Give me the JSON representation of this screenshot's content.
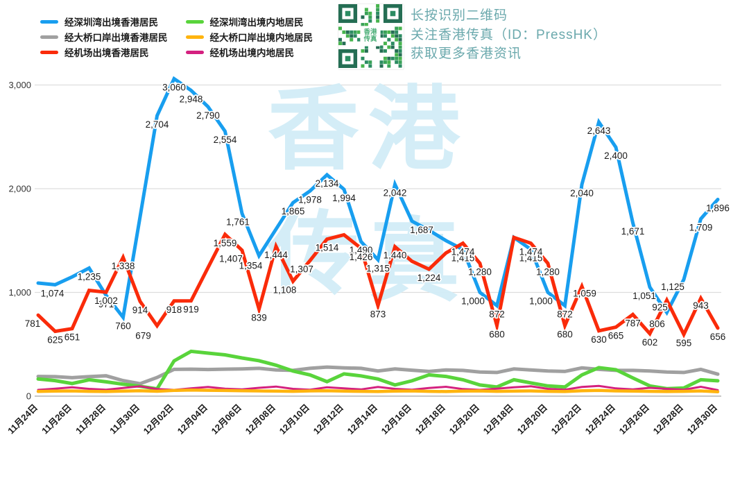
{
  "promo": {
    "line1": "长按识别二维码",
    "line2": "关注香港传真（ID：PressHK）",
    "line3": "获取更多香港资讯"
  },
  "qr_center_text": "香港传真",
  "watermark_chars": [
    "香",
    "港",
    "传",
    "真"
  ],
  "colors": {
    "blue": "#189EEF",
    "gray": "#A0A0A0",
    "red": "#FA2B0A",
    "green": "#59D43B",
    "orange": "#FFB40E",
    "magenta": "#D4217F",
    "promo_text": "#6BA9AD",
    "watermark": "#D2EDF7",
    "gridline": "#DDDDDD",
    "baseline": "#C6C6C6",
    "label_text": "#1a1a1a"
  },
  "legend": [
    {
      "label": "经深圳湾出境香港居民",
      "color_key": "blue"
    },
    {
      "label": "经大桥口岸出境香港居民",
      "color_key": "gray"
    },
    {
      "label": "经机场出境香港居民",
      "color_key": "red"
    },
    {
      "label": "经深圳湾出境内地居民",
      "color_key": "green"
    },
    {
      "label": "经大桥口岸出境内地居民",
      "color_key": "orange"
    },
    {
      "label": "经机场出境内地居民",
      "color_key": "magenta"
    }
  ],
  "chart_data": {
    "type": "line",
    "grid": true,
    "legend_position": "top-left",
    "ylim": [
      0,
      3200
    ],
    "y_tick_values": [
      0,
      1000,
      2000,
      3000
    ],
    "y_tick_labels": [
      "0",
      "1,000",
      "2,000",
      "3,000"
    ],
    "x_tick_labels": [
      "11月24日",
      "11月26日",
      "11月28日",
      "11月30日",
      "12月02日",
      "12月04日",
      "12月06日",
      "12月08日",
      "12月10日",
      "12月12日",
      "12月14日",
      "12月16日",
      "12月18日",
      "12月20日",
      "12月18日",
      "12月20日",
      "12月22日",
      "12月24日",
      "12月26日",
      "12月28日",
      "12月30日"
    ],
    "series": [
      {
        "name": "经深圳湾出境香港居民",
        "color_key": "blue",
        "width": 5,
        "values": [
          1090,
          1074,
          1150,
          1235,
          971,
          760,
          1730,
          2704,
          3060,
          2948,
          2790,
          2554,
          1761,
          1354,
          1610,
          1865,
          1978,
          2134,
          1994,
          1490,
          1315,
          2042,
          1687,
          1600,
          1500,
          1415,
          1000,
          872,
          1530,
          1415,
          1000,
          872,
          2040,
          2643,
          2400,
          1671,
          1051,
          806,
          1125,
          1709,
          1896
        ],
        "labels": [
          null,
          "1,074",
          null,
          "1,235",
          "971",
          "760",
          null,
          "2,704",
          "3,060",
          "2,948",
          "2,790",
          "2,554",
          "1,761",
          "1,354",
          null,
          "1,865",
          "1,978",
          "2,134",
          "1,994",
          "1,490",
          "1,315",
          "2,042",
          "1,687",
          null,
          null,
          "1,415",
          "1,000",
          "872",
          null,
          "1,415",
          "1,000",
          "872",
          "2,040",
          "2,643",
          "2,400",
          "1,671",
          "1,051",
          "806",
          "1,125",
          "1,709",
          "1,896"
        ]
      },
      {
        "name": "经大桥口岸出境香港居民",
        "color_key": "gray",
        "width": 5,
        "values": [
          190,
          188,
          178,
          188,
          196,
          150,
          120,
          180,
          258,
          260,
          257,
          260,
          263,
          268,
          253,
          248,
          268,
          280,
          273,
          268,
          243,
          262,
          250,
          238,
          253,
          248,
          232,
          228,
          262,
          252,
          242,
          238,
          272,
          258,
          248,
          248,
          242,
          232,
          228,
          258,
          212
        ],
        "labels": []
      },
      {
        "name": "经机场出境香港居民",
        "color_key": "red",
        "width": 5,
        "values": [
          781,
          625,
          651,
          1020,
          1002,
          1338,
          914,
          679,
          918,
          919,
          1240,
          1559,
          1407,
          839,
          1444,
          1108,
          1307,
          1514,
          1555,
          1426,
          873,
          1440,
          1300,
          1224,
          1380,
          1474,
          1280,
          680,
          1530,
          1474,
          1280,
          680,
          1059,
          630,
          665,
          787,
          602,
          925,
          595,
          943,
          656
        ],
        "labels": [
          "781",
          "625",
          "651",
          null,
          "1,002",
          "1,338",
          "914",
          "679",
          "918",
          "919",
          null,
          "1,559",
          "1,407",
          "839",
          "1,444",
          "1,108",
          "1,307",
          "1,514",
          null,
          "1,426",
          "873",
          "1,440",
          null,
          "1,224",
          null,
          "1,474",
          "1,280",
          "680",
          null,
          "1,474",
          "1,280",
          "680",
          "1,059",
          "630",
          "665",
          "787",
          "602",
          "925",
          "595",
          "943",
          "656"
        ]
      },
      {
        "name": "经深圳湾出境内地居民",
        "color_key": "green",
        "width": 5,
        "values": [
          165,
          150,
          122,
          158,
          138,
          115,
          95,
          70,
          340,
          432,
          415,
          398,
          368,
          342,
          298,
          242,
          205,
          140,
          215,
          195,
          165,
          108,
          148,
          205,
          190,
          158,
          108,
          88,
          158,
          128,
          98,
          88,
          205,
          275,
          255,
          175,
          98,
          72,
          78,
          158,
          148
        ],
        "labels": []
      },
      {
        "name": "经大桥口岸出境内地居民",
        "color_key": "orange",
        "width": 4.5,
        "values": [
          45,
          48,
          50,
          46,
          44,
          48,
          52,
          47,
          55,
          58,
          56,
          54,
          52,
          50,
          48,
          46,
          50,
          52,
          48,
          46,
          44,
          48,
          50,
          46,
          44,
          48,
          50,
          46,
          48,
          50,
          46,
          44,
          52,
          55,
          50,
          48,
          46,
          44,
          46,
          50,
          42
        ],
        "labels": []
      },
      {
        "name": "经机场出境内地居民",
        "color_key": "magenta",
        "width": 3,
        "values": [
          60,
          72,
          85,
          70,
          62,
          78,
          95,
          68,
          60,
          75,
          88,
          72,
          65,
          80,
          92,
          70,
          62,
          85,
          75,
          65,
          88,
          70,
          62,
          78,
          90,
          68,
          60,
          72,
          85,
          95,
          70,
          62,
          88,
          98,
          75,
          65,
          80,
          70,
          62,
          90,
          58
        ],
        "labels": []
      }
    ]
  }
}
